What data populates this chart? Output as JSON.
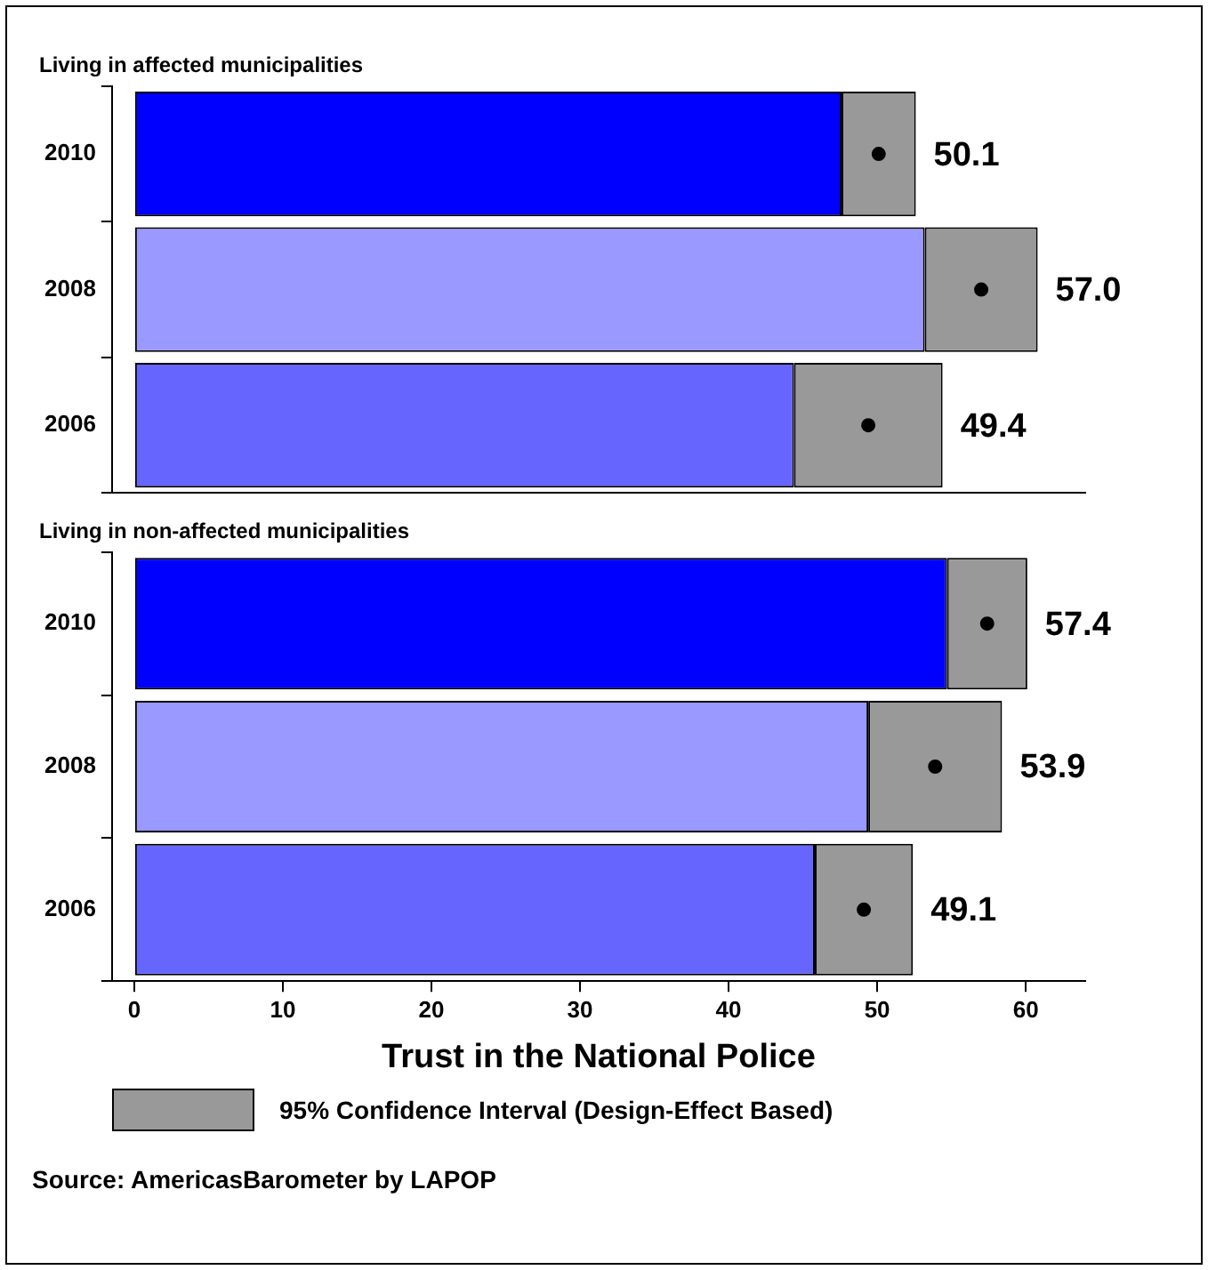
{
  "chart_data": [
    {
      "type": "bar",
      "orientation": "horizontal",
      "stacked": true,
      "title": "Living in affected municipalities",
      "categories": [
        "2010",
        "2008",
        "2006"
      ],
      "series": [
        {
          "colors": [
            "#0000ff",
            "#9999ff",
            "#6666ff"
          ],
          "values": [
            47.6,
            53.2,
            44.4
          ]
        },
        {
          "color": "#999999",
          "values": [
            5.0,
            7.6,
            10.0
          ]
        },
        {
          "type": "scatter",
          "color": "#000000",
          "values": [
            50.1,
            57.0,
            49.4
          ],
          "value_labels": [
            "50.1",
            "57.0",
            "49.4"
          ]
        }
      ],
      "marker": "circle",
      "xlim": [
        -1.5,
        64
      ],
      "xticks": [
        0,
        10,
        20,
        30,
        40,
        50,
        60
      ],
      "tick_labels": "y",
      "grid": false,
      "legend": false
    },
    {
      "type": "bar",
      "orientation": "horizontal",
      "stacked": true,
      "title": "Living in non-affected municipalities",
      "categories": [
        "2010",
        "2008",
        "2006"
      ],
      "series": [
        {
          "colors": [
            "#0000ff",
            "#9999ff",
            "#6666ff"
          ],
          "values": [
            54.7,
            49.4,
            45.8
          ]
        },
        {
          "name": "95% Confidence Interval (Design-Effect Based)",
          "color": "#999999",
          "values": [
            5.4,
            9.0,
            6.6
          ]
        },
        {
          "type": "scatter",
          "color": "#000000",
          "values": [
            57.4,
            53.9,
            49.1
          ],
          "value_labels": [
            "57.4",
            "53.9",
            "49.1"
          ]
        }
      ],
      "marker": "circle",
      "xlim": [
        -1.5,
        64
      ],
      "xticks": [
        0,
        10,
        20,
        30,
        40,
        50,
        60
      ],
      "xlabel": "Trust in the National Police",
      "grid": false,
      "legend": "bottom",
      "annotations": [
        "Source: AmericasBarometer by  LAPOP"
      ]
    }
  ]
}
